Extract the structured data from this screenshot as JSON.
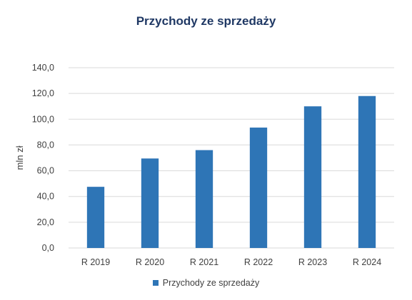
{
  "chart_data": {
    "type": "bar",
    "title": "Przychody ze sprzedaży",
    "xlabel": "",
    "ylabel": "mln zł",
    "categories": [
      "R 2019",
      "R 2020",
      "R 2021",
      "R 2022",
      "R 2023",
      "R 2024"
    ],
    "series": [
      {
        "name": "Przychody ze sprzedaży",
        "values": [
          47.5,
          69.5,
          76.0,
          93.5,
          110.0,
          118.0
        ],
        "color": "#2E75B6"
      }
    ],
    "ylim": [
      0,
      140
    ],
    "yticks": [
      "0,0",
      "20,0",
      "40,0",
      "60,0",
      "80,0",
      "100,0",
      "120,0",
      "140,0"
    ],
    "grid": true,
    "gridColor": "#D9D9D9",
    "legend_position": "bottom"
  }
}
